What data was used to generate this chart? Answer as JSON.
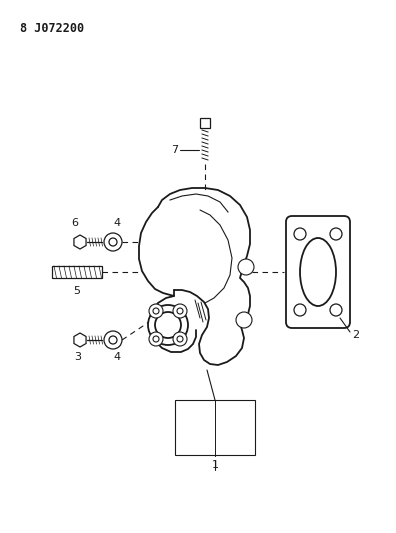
{
  "title": "8 J072200",
  "bg_color": "#ffffff",
  "line_color": "#1a1a1a",
  "fig_width": 3.96,
  "fig_height": 5.33,
  "dpi": 100
}
